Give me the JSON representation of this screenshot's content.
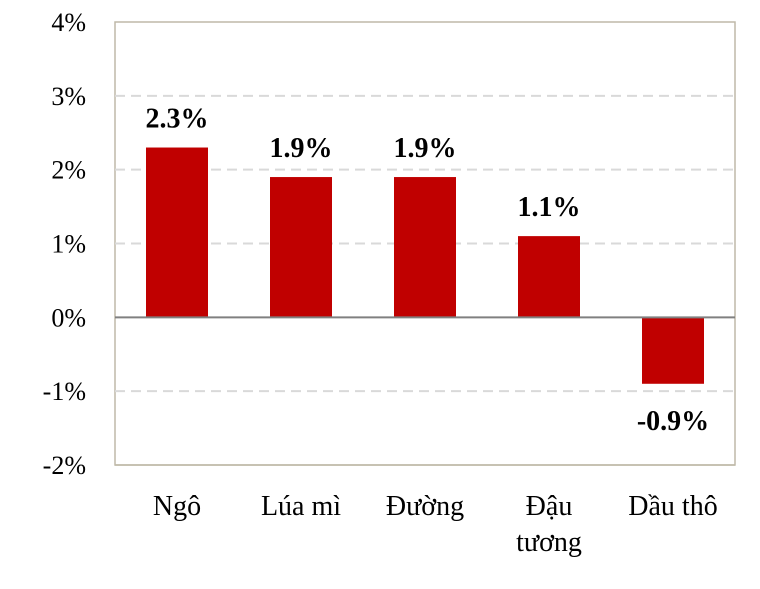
{
  "chart_data": {
    "type": "bar",
    "categories": [
      [
        "Ngô"
      ],
      [
        "Lúa mì"
      ],
      [
        "Đường"
      ],
      [
        "Đậu",
        "tương"
      ],
      [
        "Dầu thô"
      ]
    ],
    "values": [
      2.3,
      1.9,
      1.9,
      1.1,
      -0.9
    ],
    "data_labels": [
      "2.3%",
      "1.9%",
      "1.9%",
      "1.1%",
      "-0.9%"
    ],
    "yticks": [
      4,
      3,
      2,
      1,
      0,
      -1,
      -2
    ],
    "ytick_labels": [
      "4%",
      "3%",
      "2%",
      "1%",
      "0%",
      "-1%",
      "-2%"
    ],
    "ylim": [
      -2,
      4
    ],
    "grid": true,
    "colors": {
      "bar": "#c00000",
      "grid": "#d9d9d9",
      "frame": "#bfb9a8",
      "zero_line": "#808080"
    }
  }
}
